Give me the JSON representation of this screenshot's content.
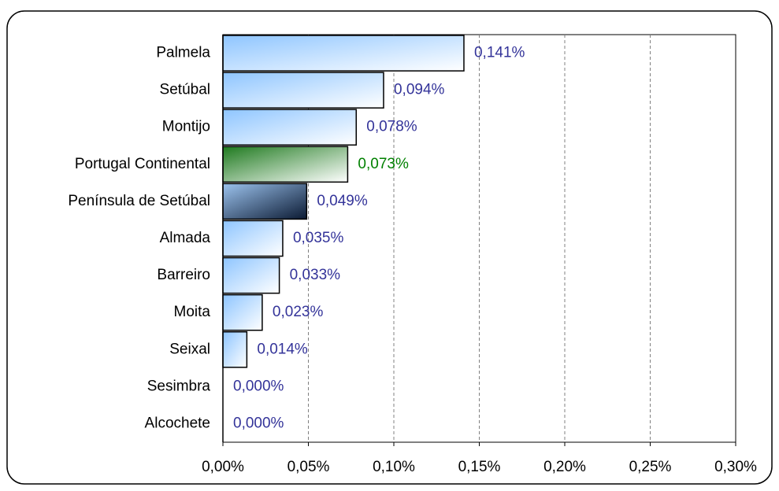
{
  "chart_data": {
    "type": "hbar",
    "categories": [
      "Palmela",
      "Setúbal",
      "Montijo",
      "Portugal Continental",
      "Península de Setúbal",
      "Almada",
      "Barreiro",
      "Moita",
      "Seixal",
      "Sesimbra",
      "Alcochete"
    ],
    "values": [
      0.141,
      0.094,
      0.078,
      0.073,
      0.049,
      0.035,
      0.033,
      0.023,
      0.014,
      0,
      0
    ],
    "value_labels": [
      "0,141%",
      "0,094%",
      "0,078%",
      "0,073%",
      "0,049%",
      "0,035%",
      "0,033%",
      "0,023%",
      "0,014%",
      "0,000%",
      "0,000%"
    ],
    "gradients": [
      [
        "#8ec5ff",
        "#ffffff"
      ],
      [
        "#8ec5ff",
        "#ffffff"
      ],
      [
        "#8ec5ff",
        "#ffffff"
      ],
      [
        "#1f7a1f",
        "#ffffff"
      ],
      [
        "#9cc3ee",
        "#0b1a33"
      ],
      [
        "#8ec5ff",
        "#ffffff"
      ],
      [
        "#8ec5ff",
        "#ffffff"
      ],
      [
        "#8ec5ff",
        "#ffffff"
      ],
      [
        "#8ec5ff",
        "#ffffff"
      ],
      [
        "#8ec5ff",
        "#ffffff"
      ],
      [
        "#8ec5ff",
        "#ffffff"
      ]
    ],
    "label_colors": [
      "#333399",
      "#333399",
      "#333399",
      "#008000",
      "#333399",
      "#333399",
      "#333399",
      "#333399",
      "#333399",
      "#333399",
      "#333399"
    ],
    "xlim": [
      0,
      0.3
    ],
    "xticks": [
      {
        "value": 0,
        "label": "0,00%"
      },
      {
        "value": 0.05,
        "label": "0,05%"
      },
      {
        "value": 0.1,
        "label": "0,10%"
      },
      {
        "value": 0.15,
        "label": "0,15%"
      },
      {
        "value": 0.2,
        "label": "0,20%"
      },
      {
        "value": 0.25,
        "label": "0,25%"
      },
      {
        "value": 0.3,
        "label": "0,30%"
      }
    ],
    "grid": true
  }
}
